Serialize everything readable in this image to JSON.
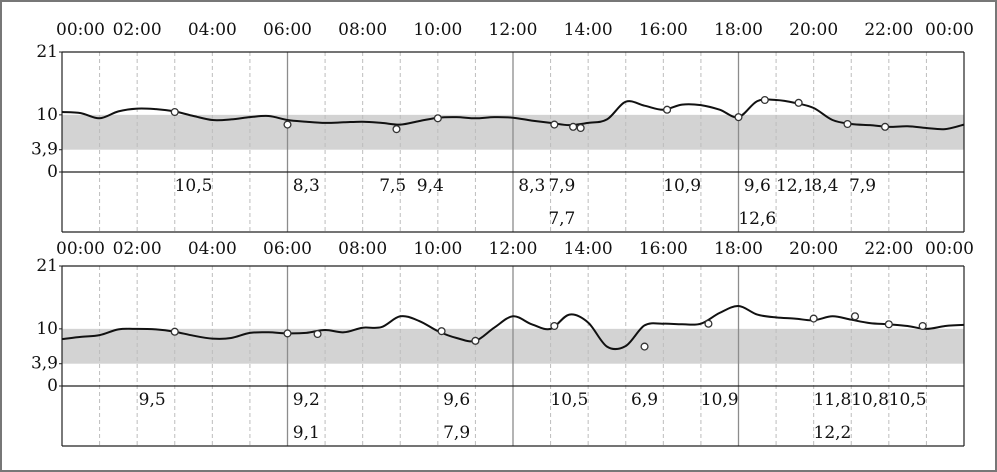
{
  "chart_data": [
    {
      "type": "line",
      "x_ticks": [
        "00:00",
        "02:00",
        "04:00",
        "06:00",
        "08:00",
        "10:00",
        "12:00",
        "14:00",
        "16:00",
        "18:00",
        "20:00",
        "22:00",
        "00:00"
      ],
      "y_ticks": [
        "21",
        "10",
        "3,9",
        "0"
      ],
      "ylim": [
        0,
        21
      ],
      "target_range": [
        3.9,
        10
      ],
      "series": [
        {
          "x": [
            0,
            0.5,
            1,
            1.5,
            2,
            2.5,
            3,
            3.5,
            4,
            4.5,
            5,
            5.5,
            6,
            6.5,
            7,
            7.5,
            8,
            8.5,
            9,
            9.5,
            10,
            10.5,
            11,
            11.5,
            12,
            12.5,
            13,
            13.5,
            14,
            14.5,
            15,
            15.5,
            16,
            16.5,
            17,
            17.5,
            18,
            18.5,
            19,
            19.5,
            20,
            20.5,
            21,
            21.5,
            22,
            22.5,
            23,
            23.5,
            24
          ],
          "y": [
            10.5,
            10.3,
            9.4,
            10.6,
            11.1,
            11.0,
            10.6,
            9.8,
            9.1,
            9.2,
            9.6,
            9.8,
            9.1,
            8.8,
            8.6,
            8.7,
            8.8,
            8.6,
            8.3,
            8.9,
            9.5,
            9.6,
            9.4,
            9.6,
            9.5,
            9.0,
            8.6,
            8.2,
            8.6,
            9.2,
            12.3,
            11.6,
            10.9,
            11.8,
            11.7,
            10.9,
            9.6,
            12.4,
            12.6,
            12.1,
            11.2,
            9.1,
            8.4,
            8.2,
            7.9,
            8.0,
            7.7,
            7.5,
            8.3
          ]
        }
      ],
      "markers": [
        {
          "x": 3.0,
          "y": 10.5
        },
        {
          "x": 6.0,
          "y": 8.3
        },
        {
          "x": 8.9,
          "y": 7.5
        },
        {
          "x": 10.0,
          "y": 9.4
        },
        {
          "x": 13.1,
          "y": 8.3
        },
        {
          "x": 13.6,
          "y": 7.9
        },
        {
          "x": 13.8,
          "y": 7.7
        },
        {
          "x": 16.1,
          "y": 10.9
        },
        {
          "x": 18.0,
          "y": 9.6
        },
        {
          "x": 18.7,
          "y": 12.6
        },
        {
          "x": 19.6,
          "y": 12.1
        },
        {
          "x": 20.9,
          "y": 8.4
        },
        {
          "x": 21.9,
          "y": 7.9
        }
      ],
      "value_labels": [
        {
          "x": 3.5,
          "row": 1,
          "text": "10,5"
        },
        {
          "x": 6.5,
          "row": 1,
          "text": "8,3"
        },
        {
          "x": 8.8,
          "row": 1,
          "text": "7,5"
        },
        {
          "x": 9.8,
          "row": 1,
          "text": "9,4"
        },
        {
          "x": 12.5,
          "row": 1,
          "text": "8,3"
        },
        {
          "x": 13.3,
          "row": 1,
          "text": "7,9"
        },
        {
          "x": 13.3,
          "row": 2,
          "text": "7,7"
        },
        {
          "x": 16.5,
          "row": 1,
          "text": "10,9"
        },
        {
          "x": 18.5,
          "row": 1,
          "text": "9,6"
        },
        {
          "x": 18.5,
          "row": 2,
          "text": "12,6"
        },
        {
          "x": 19.5,
          "row": 1,
          "text": "12,1"
        },
        {
          "x": 20.3,
          "row": 1,
          "text": "8,4"
        },
        {
          "x": 21.3,
          "row": 1,
          "text": "7,9"
        }
      ]
    },
    {
      "type": "line",
      "x_ticks": [
        "00:00",
        "02:00",
        "04:00",
        "06:00",
        "08:00",
        "10:00",
        "12:00",
        "14:00",
        "16:00",
        "18:00",
        "20:00",
        "22:00",
        "00:00"
      ],
      "y_ticks": [
        "21",
        "10",
        "3,9",
        "0"
      ],
      "ylim": [
        0,
        21
      ],
      "target_range": [
        3.9,
        10
      ],
      "series": [
        {
          "x": [
            0,
            0.5,
            1,
            1.5,
            2,
            2.5,
            3,
            3.5,
            4,
            4.5,
            5,
            5.5,
            6,
            6.5,
            7,
            7.5,
            8,
            8.5,
            9,
            9.5,
            10,
            10.5,
            11,
            11.5,
            12,
            12.5,
            13,
            13.5,
            14,
            14.5,
            15,
            15.5,
            16,
            16.5,
            17,
            17.5,
            18,
            18.5,
            19,
            19.5,
            20,
            20.5,
            21,
            21.5,
            22,
            22.5,
            23,
            23.5,
            24
          ],
          "y": [
            8.2,
            8.6,
            8.9,
            9.9,
            10.0,
            9.9,
            9.5,
            8.8,
            8.3,
            8.4,
            9.3,
            9.4,
            9.2,
            9.3,
            9.8,
            9.4,
            10.2,
            10.3,
            12.2,
            11.4,
            9.6,
            8.4,
            7.9,
            10.2,
            12.2,
            10.8,
            10.0,
            12.5,
            11.1,
            6.9,
            7.0,
            10.6,
            10.9,
            10.8,
            10.9,
            12.8,
            14.0,
            12.5,
            12.0,
            11.8,
            11.5,
            12.2,
            11.6,
            11.0,
            10.8,
            10.5,
            10.0,
            10.5,
            10.7
          ]
        }
      ],
      "markers": [
        {
          "x": 3.0,
          "y": 9.5
        },
        {
          "x": 6.0,
          "y": 9.2
        },
        {
          "x": 6.8,
          "y": 9.1
        },
        {
          "x": 10.1,
          "y": 9.6
        },
        {
          "x": 11.0,
          "y": 7.9
        },
        {
          "x": 13.1,
          "y": 10.5
        },
        {
          "x": 15.5,
          "y": 6.9
        },
        {
          "x": 17.2,
          "y": 10.9
        },
        {
          "x": 20.0,
          "y": 11.8
        },
        {
          "x": 21.1,
          "y": 12.2
        },
        {
          "x": 22.0,
          "y": 10.8
        },
        {
          "x": 22.9,
          "y": 10.5
        }
      ],
      "value_labels": [
        {
          "x": 2.4,
          "row": 1,
          "text": "9,5"
        },
        {
          "x": 6.5,
          "row": 1,
          "text": "9,2"
        },
        {
          "x": 6.5,
          "row": 2,
          "text": "9,1"
        },
        {
          "x": 10.5,
          "row": 1,
          "text": "9,6"
        },
        {
          "x": 10.5,
          "row": 2,
          "text": "7,9"
        },
        {
          "x": 13.5,
          "row": 1,
          "text": "10,5"
        },
        {
          "x": 15.5,
          "row": 1,
          "text": "6,9"
        },
        {
          "x": 17.5,
          "row": 1,
          "text": "10,9"
        },
        {
          "x": 20.5,
          "row": 1,
          "text": "11,8"
        },
        {
          "x": 21.5,
          "row": 1,
          "text": "10,8"
        },
        {
          "x": 22.5,
          "row": 1,
          "text": "10,5"
        },
        {
          "x": 20.5,
          "row": 2,
          "text": "12,2"
        }
      ]
    }
  ]
}
